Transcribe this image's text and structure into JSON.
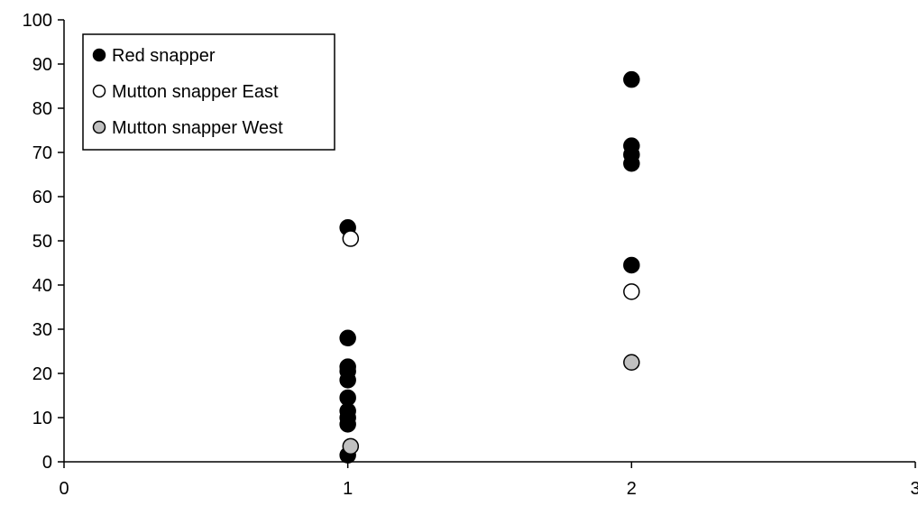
{
  "chart_data": {
    "type": "scatter",
    "title": "",
    "xlabel": "",
    "ylabel": "",
    "xlim": [
      0,
      3
    ],
    "ylim": [
      0,
      100
    ],
    "xticks": [
      "0",
      "1",
      "2",
      "3"
    ],
    "yticks": [
      "0",
      "10",
      "20",
      "30",
      "40",
      "50",
      "60",
      "70",
      "80",
      "90",
      "100"
    ],
    "grid": false,
    "legend_position": "top-left",
    "series": [
      {
        "name": "Red snapper",
        "color": "#000000",
        "points": [
          [
            1,
            53
          ],
          [
            1,
            28
          ],
          [
            1,
            21.5
          ],
          [
            1,
            20.5
          ],
          [
            1,
            18.5
          ],
          [
            1,
            14.5
          ],
          [
            1,
            11.5
          ],
          [
            1,
            10
          ],
          [
            1,
            8.5
          ],
          [
            1,
            1.5
          ],
          [
            2,
            86.5
          ],
          [
            2,
            71.5
          ],
          [
            2,
            69.5
          ],
          [
            2,
            67.5
          ],
          [
            2,
            44.5
          ]
        ]
      },
      {
        "name": "Mutton snapper  East",
        "color": "#ffffff",
        "points": [
          [
            1.01,
            50.5
          ],
          [
            2,
            38.5
          ]
        ]
      },
      {
        "name": "Mutton snapper West",
        "color": "#c0c0c0",
        "points": [
          [
            1.01,
            3.5
          ],
          [
            2,
            22.5
          ]
        ]
      }
    ]
  }
}
